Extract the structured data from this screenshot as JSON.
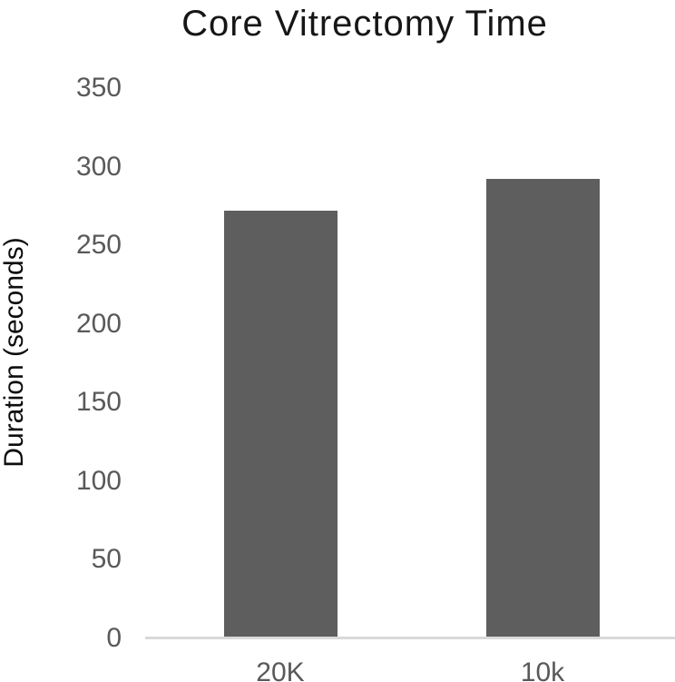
{
  "chart_data": {
    "type": "bar",
    "title": "Core Vitrectomy Time",
    "ylabel": "Duration (seconds)",
    "xlabel": "",
    "categories": [
      "20K",
      "10k"
    ],
    "values": [
      272,
      292
    ],
    "ylim": [
      0,
      350
    ],
    "yticks": [
      0,
      50,
      100,
      150,
      200,
      250,
      300,
      350
    ],
    "grid": false,
    "legend": "none",
    "colors": {
      "bar": "#5e5e5e",
      "tick_label": "#595959",
      "category_label": "#595959",
      "axis_line": "#d9d9d9",
      "title": "#161616",
      "ylabel": "#0d0d0d",
      "background": "#ffffff"
    }
  }
}
